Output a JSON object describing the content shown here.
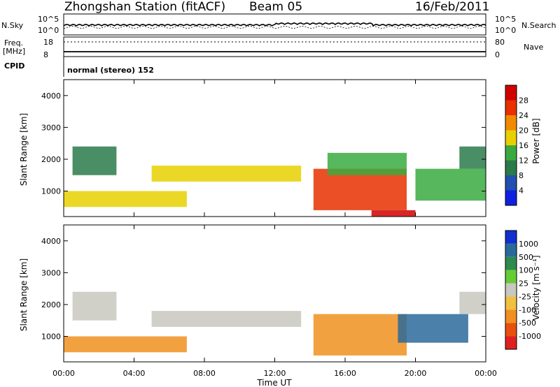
{
  "header": {
    "station": "Zhongshan Station (fitACF)",
    "beam": "Beam 05",
    "date": "16/Feb/2011"
  },
  "summary_panels": {
    "sky_label": "N.Sky",
    "sky_ticks": [
      "10^5",
      "10^0"
    ],
    "search_label": "N.Search",
    "search_ticks": [
      "10^5",
      "10^0"
    ],
    "freq_label": "Freq.",
    "freq_unit": "[MHz]",
    "freq_ticks": [
      "18",
      "8"
    ],
    "nave_label": "Nave",
    "nave_ticks": [
      "80",
      "0"
    ],
    "cpid_label": "CPID",
    "cpid_text": "normal (stereo) 152"
  },
  "axes": {
    "ylabel": "Slant Range [km]",
    "xlabel": "Time UT",
    "y_ticks": [
      "1000",
      "2000",
      "3000",
      "4000"
    ],
    "x_ticks": [
      "00:00",
      "04:00",
      "08:00",
      "12:00",
      "16:00",
      "20:00",
      "00:00"
    ]
  },
  "power_scale": {
    "label": "Power [dB]",
    "ticks": [
      "4",
      "8",
      "12",
      "16",
      "20",
      "24",
      "28"
    ],
    "colors": [
      "#1020e0",
      "#2050b0",
      "#2a7a4a",
      "#3aaa40",
      "#e8d000",
      "#f08a00",
      "#e83000",
      "#d00000"
    ]
  },
  "velocity_scale": {
    "label": "Velocity [m s⁻¹]",
    "ticks": [
      "1000",
      "500",
      "100",
      "25",
      "-25",
      "-100",
      "-500",
      "-1000"
    ],
    "colors": [
      "#1030d0",
      "#2a6a9a",
      "#2e8a4e",
      "#66cc33",
      "#c8c8c0",
      "#f0c040",
      "#f09020",
      "#e85010",
      "#e02020"
    ]
  },
  "chart_data": [
    {
      "type": "heatmap",
      "title": "Power",
      "xlabel": "Time UT",
      "ylabel": "Slant Range [km]",
      "x_range_hours": [
        0,
        24
      ],
      "y_range_km": [
        200,
        4500
      ],
      "colorbar_range_db": [
        0,
        30
      ],
      "regions": [
        {
          "t": [
            0.0,
            7.0
          ],
          "r": [
            500,
            1000
          ],
          "level_db": 18
        },
        {
          "t": [
            0.5,
            3.0
          ],
          "r": [
            1500,
            2400
          ],
          "level_db": 10
        },
        {
          "t": [
            5.0,
            13.5
          ],
          "r": [
            1300,
            1800
          ],
          "level_db": 15
        },
        {
          "t": [
            14.2,
            19.5
          ],
          "r": [
            400,
            1700
          ],
          "level_db": 24
        },
        {
          "t": [
            15.0,
            19.5
          ],
          "r": [
            1500,
            2200
          ],
          "level_db": 12
        },
        {
          "t": [
            17.5,
            20.0
          ],
          "r": [
            200,
            400
          ],
          "level_db": 28
        },
        {
          "t": [
            20.0,
            24.0
          ],
          "r": [
            700,
            1700
          ],
          "level_db": 14
        },
        {
          "t": [
            22.5,
            24.0
          ],
          "r": [
            1700,
            2400
          ],
          "level_db": 9
        }
      ]
    },
    {
      "type": "heatmap",
      "title": "Velocity",
      "xlabel": "Time UT",
      "ylabel": "Slant Range [km]",
      "x_range_hours": [
        0,
        24
      ],
      "y_range_km": [
        200,
        4500
      ],
      "colorbar_range_ms": [
        -1000,
        1000
      ],
      "regions": [
        {
          "t": [
            0.0,
            7.0
          ],
          "r": [
            500,
            1000
          ],
          "velocity_ms": -200
        },
        {
          "t": [
            0.5,
            3.0
          ],
          "r": [
            1500,
            2400
          ],
          "velocity_ms": 0
        },
        {
          "t": [
            5.0,
            13.5
          ],
          "r": [
            1300,
            1800
          ],
          "velocity_ms": 0
        },
        {
          "t": [
            14.2,
            19.5
          ],
          "r": [
            400,
            1700
          ],
          "velocity_ms": -400
        },
        {
          "t": [
            19.0,
            23.0
          ],
          "r": [
            800,
            1700
          ],
          "velocity_ms": 200
        },
        {
          "t": [
            22.5,
            24.0
          ],
          "r": [
            1700,
            2400
          ],
          "velocity_ms": 0
        }
      ]
    }
  ]
}
